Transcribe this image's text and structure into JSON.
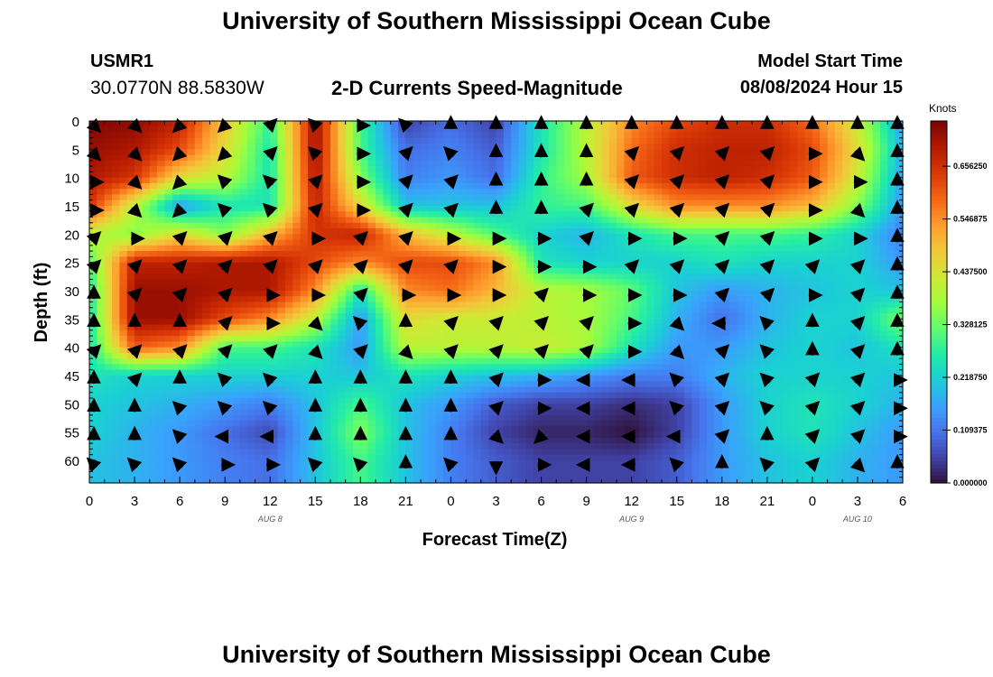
{
  "header": {
    "title": "University of Southern Mississippi Ocean Cube",
    "station": "USMR1",
    "coords": "30.0770N  88.5830W",
    "subtitle": "2-D Currents Speed-Magnitude",
    "model_start_label": "Model Start Time",
    "model_start_value": "08/08/2024 Hour 15"
  },
  "footer": {
    "title": "University of Southern Mississippi Ocean Cube"
  },
  "colors": {
    "colormap": [
      "#30123b",
      "#4145ab",
      "#4675ed",
      "#39a2fc",
      "#1bcfd4",
      "#24eca6",
      "#61fc6c",
      "#a4fc3b",
      "#d1e834",
      "#f3c63a",
      "#fe9b2d",
      "#f36315",
      "#d93806",
      "#b11901",
      "#7a0403"
    ]
  },
  "chart_data": {
    "type": "heatmap",
    "title": "2-D Currents Speed-Magnitude",
    "xlabel": "Forecast Time(Z)",
    "ylabel": "Depth (ft)",
    "x_tick_labels": [
      "0",
      "3",
      "6",
      "9",
      "12",
      "15",
      "18",
      "21",
      "0",
      "3",
      "6",
      "9",
      "12",
      "15",
      "18",
      "21",
      "0",
      "3",
      "6"
    ],
    "x_hours": [
      0,
      3,
      6,
      9,
      12,
      15,
      18,
      21,
      24,
      27,
      30,
      33,
      36,
      39,
      42,
      45,
      48,
      51,
      54
    ],
    "xlim": [
      0,
      54
    ],
    "day_labels": [
      {
        "text": "AUG 8",
        "hour": 12
      },
      {
        "text": "AUG 9",
        "hour": 36
      },
      {
        "text": "AUG 10",
        "hour": 51
      }
    ],
    "y_ticks": [
      0,
      5,
      10,
      15,
      20,
      25,
      30,
      35,
      40,
      45,
      50,
      55,
      60
    ],
    "ylim": [
      0,
      64
    ],
    "colorbar": {
      "label": "Knots",
      "ticks": [
        "0.656250",
        "0.546875",
        "0.437500",
        "0.328125",
        "0.218750",
        "0.109375",
        "0.000000"
      ],
      "tick_values": [
        0.65625,
        0.546875,
        0.4375,
        0.328125,
        0.21875,
        0.109375,
        0.0
      ],
      "range": [
        0,
        0.75
      ]
    },
    "grid_columns_hours": [
      0,
      3,
      6,
      9,
      12,
      15,
      18,
      21,
      24,
      27,
      30,
      33,
      36,
      39,
      42,
      45,
      48,
      51,
      54
    ],
    "grid_rows_depth": [
      0,
      5,
      10,
      15,
      20,
      25,
      30,
      35,
      40,
      45,
      50,
      55,
      60
    ],
    "speed_knots": [
      [
        0.74,
        0.73,
        0.68,
        0.48,
        0.28,
        0.72,
        0.3,
        0.05,
        0.1,
        0.05,
        0.25,
        0.4,
        0.55,
        0.62,
        0.66,
        0.66,
        0.58,
        0.42,
        0.15
      ],
      [
        0.72,
        0.7,
        0.62,
        0.45,
        0.25,
        0.72,
        0.3,
        0.1,
        0.12,
        0.08,
        0.25,
        0.4,
        0.58,
        0.66,
        0.68,
        0.68,
        0.62,
        0.45,
        0.18
      ],
      [
        0.7,
        0.65,
        0.45,
        0.4,
        0.25,
        0.7,
        0.35,
        0.12,
        0.15,
        0.1,
        0.28,
        0.38,
        0.6,
        0.66,
        0.68,
        0.66,
        0.6,
        0.42,
        0.16
      ],
      [
        0.65,
        0.4,
        0.15,
        0.25,
        0.25,
        0.68,
        0.45,
        0.2,
        0.2,
        0.2,
        0.28,
        0.3,
        0.45,
        0.55,
        0.55,
        0.55,
        0.5,
        0.35,
        0.15
      ],
      [
        0.4,
        0.35,
        0.45,
        0.35,
        0.5,
        0.65,
        0.68,
        0.5,
        0.4,
        0.3,
        0.22,
        0.18,
        0.25,
        0.3,
        0.3,
        0.3,
        0.28,
        0.22,
        0.12
      ],
      [
        0.3,
        0.68,
        0.68,
        0.7,
        0.7,
        0.62,
        0.55,
        0.62,
        0.62,
        0.55,
        0.25,
        0.22,
        0.22,
        0.22,
        0.25,
        0.22,
        0.22,
        0.22,
        0.15
      ],
      [
        0.25,
        0.72,
        0.72,
        0.7,
        0.7,
        0.55,
        0.25,
        0.55,
        0.58,
        0.5,
        0.4,
        0.38,
        0.32,
        0.2,
        0.15,
        0.18,
        0.2,
        0.22,
        0.2
      ],
      [
        0.25,
        0.72,
        0.72,
        0.62,
        0.55,
        0.4,
        0.15,
        0.45,
        0.42,
        0.42,
        0.4,
        0.38,
        0.3,
        0.18,
        0.1,
        0.18,
        0.22,
        0.22,
        0.35
      ],
      [
        0.25,
        0.6,
        0.55,
        0.3,
        0.3,
        0.25,
        0.15,
        0.4,
        0.4,
        0.4,
        0.42,
        0.38,
        0.25,
        0.15,
        0.15,
        0.2,
        0.22,
        0.2,
        0.25
      ],
      [
        0.25,
        0.22,
        0.22,
        0.22,
        0.22,
        0.22,
        0.2,
        0.25,
        0.22,
        0.2,
        0.18,
        0.15,
        0.12,
        0.12,
        0.18,
        0.22,
        0.22,
        0.22,
        0.2
      ],
      [
        0.22,
        0.2,
        0.18,
        0.15,
        0.12,
        0.2,
        0.3,
        0.2,
        0.15,
        0.08,
        0.05,
        0.05,
        0.03,
        0.05,
        0.15,
        0.22,
        0.25,
        0.22,
        0.18
      ],
      [
        0.22,
        0.18,
        0.15,
        0.1,
        0.06,
        0.2,
        0.35,
        0.2,
        0.12,
        0.05,
        0.02,
        0.02,
        0.0,
        0.05,
        0.15,
        0.22,
        0.25,
        0.2,
        0.15
      ],
      [
        0.2,
        0.18,
        0.15,
        0.12,
        0.1,
        0.2,
        0.3,
        0.2,
        0.12,
        0.08,
        0.05,
        0.05,
        0.05,
        0.08,
        0.15,
        0.2,
        0.22,
        0.18,
        0.15
      ]
    ],
    "arrow_direction_deg": [
      [
        135,
        135,
        225,
        225,
        45,
        315,
        90,
        315,
        0,
        0,
        0,
        0,
        0,
        0,
        0,
        0,
        0,
        0,
        0
      ],
      [
        135,
        135,
        225,
        225,
        45,
        315,
        90,
        45,
        315,
        0,
        0,
        0,
        45,
        45,
        45,
        45,
        90,
        135,
        0
      ],
      [
        90,
        135,
        225,
        315,
        315,
        45,
        90,
        45,
        45,
        0,
        0,
        0,
        45,
        45,
        45,
        45,
        90,
        90,
        0
      ],
      [
        90,
        135,
        225,
        315,
        315,
        45,
        90,
        45,
        45,
        0,
        0,
        45,
        45,
        45,
        45,
        45,
        90,
        135,
        0
      ],
      [
        45,
        90,
        45,
        45,
        45,
        90,
        45,
        45,
        90,
        90,
        90,
        45,
        90,
        90,
        45,
        45,
        90,
        90,
        0
      ],
      [
        45,
        45,
        45,
        45,
        45,
        45,
        45,
        45,
        45,
        90,
        90,
        90,
        45,
        45,
        45,
        45,
        45,
        45,
        0
      ],
      [
        0,
        45,
        45,
        45,
        90,
        90,
        45,
        90,
        90,
        90,
        45,
        90,
        90,
        90,
        45,
        45,
        90,
        45,
        0
      ],
      [
        0,
        0,
        0,
        45,
        90,
        135,
        315,
        0,
        45,
        45,
        45,
        45,
        90,
        135,
        270,
        315,
        0,
        45,
        0
      ],
      [
        45,
        45,
        45,
        45,
        45,
        135,
        45,
        135,
        45,
        45,
        45,
        45,
        90,
        135,
        45,
        315,
        0,
        45,
        0
      ],
      [
        0,
        45,
        0,
        315,
        315,
        0,
        0,
        0,
        0,
        45,
        90,
        270,
        270,
        315,
        45,
        315,
        45,
        45,
        90
      ],
      [
        0,
        0,
        315,
        315,
        315,
        0,
        0,
        0,
        0,
        45,
        90,
        270,
        270,
        315,
        45,
        315,
        45,
        45,
        90
      ],
      [
        0,
        0,
        315,
        270,
        270,
        0,
        0,
        0,
        0,
        135,
        225,
        270,
        270,
        270,
        45,
        0,
        45,
        45,
        90
      ],
      [
        315,
        315,
        315,
        90,
        90,
        315,
        315,
        0,
        315,
        180,
        90,
        270,
        270,
        315,
        0,
        315,
        45,
        135,
        0
      ]
    ]
  }
}
